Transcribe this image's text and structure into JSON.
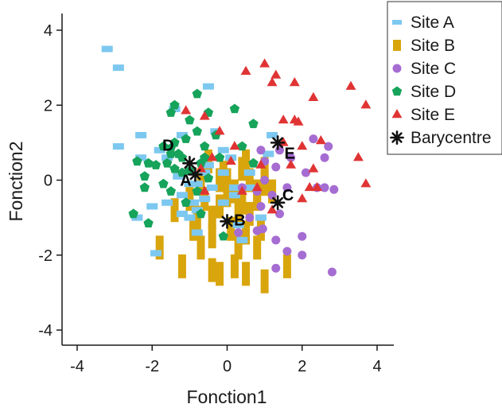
{
  "chart_data": {
    "type": "scatter",
    "xlabel": "Fonction1",
    "ylabel": "Fonction2",
    "xlim": [
      -4.4,
      4.4
    ],
    "ylim": [
      -4.4,
      4.4
    ],
    "xticks": [
      -4,
      -2,
      0,
      2,
      4
    ],
    "yticks": [
      -4,
      -2,
      0,
      2,
      4
    ],
    "xtick_labels": [
      "-4",
      "-2",
      "0",
      "2",
      "4"
    ],
    "ytick_labels": [
      "-4",
      "-2",
      "0",
      "2",
      "4"
    ],
    "grid": false,
    "legend_position": "top-right",
    "series": [
      {
        "name": "Site A",
        "marker": "hbar",
        "color": "#7DC8F0",
        "points": [
          [
            -3.2,
            3.5
          ],
          [
            -2.9,
            3.0
          ],
          [
            -0.5,
            2.5
          ],
          [
            -1.4,
            1.9
          ],
          [
            -2.3,
            1.2
          ],
          [
            -1.2,
            1.2
          ],
          [
            1.2,
            1.2
          ],
          [
            -2.9,
            0.9
          ],
          [
            -0.3,
            1.3
          ],
          [
            -0.1,
            0.8
          ],
          [
            -1.8,
            0.8
          ],
          [
            -2.3,
            0.6
          ],
          [
            -1.6,
            0.6
          ],
          [
            0.1,
            0.6
          ],
          [
            1.1,
            0.7
          ],
          [
            -0.5,
            0.4
          ],
          [
            -0.1,
            0.2
          ],
          [
            0.6,
            0.2
          ],
          [
            -0.6,
            0.2
          ],
          [
            -1.3,
            0.1
          ],
          [
            -0.8,
            -0.1
          ],
          [
            0.2,
            -0.2
          ],
          [
            -1.0,
            -0.1
          ],
          [
            -0.4,
            -0.2
          ],
          [
            -1.2,
            -0.4
          ],
          [
            -0.6,
            -0.5
          ],
          [
            0.6,
            -0.2
          ],
          [
            0.2,
            -0.4
          ],
          [
            -1.6,
            -0.6
          ],
          [
            -0.9,
            -0.6
          ],
          [
            -0.1,
            -0.6
          ],
          [
            -0.8,
            -0.8
          ],
          [
            -2.0,
            -0.7
          ],
          [
            -1.2,
            -0.9
          ],
          [
            -2.4,
            -1.0
          ],
          [
            -1.0,
            -1.0
          ],
          [
            0.3,
            -1.2
          ],
          [
            -0.8,
            -1.4
          ],
          [
            0.4,
            -1.6
          ],
          [
            0.9,
            -1.0
          ],
          [
            -1.9,
            -1.95
          ]
        ]
      },
      {
        "name": "Site B",
        "marker": "vbar",
        "color": "#D9A50D",
        "points": [
          [
            -1.8,
            -1.8
          ],
          [
            -1.2,
            -2.3
          ],
          [
            -0.7,
            -1.8
          ],
          [
            -0.4,
            -2.4
          ],
          [
            -0.2,
            -2.5
          ],
          [
            0.2,
            -2.3
          ],
          [
            0.5,
            -2.5
          ],
          [
            1.0,
            -2.7
          ],
          [
            1.6,
            -2.3
          ],
          [
            0.3,
            -1.8
          ],
          [
            0.8,
            -1.8
          ],
          [
            -1.4,
            -0.8
          ],
          [
            -0.8,
            -1.0
          ],
          [
            -0.6,
            -0.5
          ],
          [
            -0.4,
            -1.0
          ],
          [
            -0.2,
            -0.7
          ],
          [
            0.0,
            -0.4
          ],
          [
            0.2,
            -0.3
          ],
          [
            0.4,
            -0.6
          ],
          [
            0.6,
            -0.9
          ],
          [
            0.8,
            -0.3
          ],
          [
            1.0,
            -0.1
          ],
          [
            -0.2,
            0.0
          ],
          [
            0.0,
            0.0
          ],
          [
            0.4,
            0.3
          ],
          [
            0.6,
            0.0
          ],
          [
            0.8,
            -0.5
          ],
          [
            1.2,
            -0.3
          ],
          [
            -0.5,
            0.5
          ],
          [
            -0.1,
            0.2
          ],
          [
            0.5,
            0.5
          ],
          [
            1.0,
            0.3
          ],
          [
            -0.9,
            -1.3
          ],
          [
            -0.4,
            -1.5
          ],
          [
            0.1,
            -1.3
          ],
          [
            0.5,
            -1.4
          ],
          [
            0.9,
            -1.3
          ],
          [
            -0.7,
            0.0
          ],
          [
            -1.0,
            -0.5
          ],
          [
            0.3,
            -0.9
          ]
        ]
      },
      {
        "name": "Site C",
        "marker": "circle",
        "color": "#A56CD2",
        "points": [
          [
            0.9,
            0.8
          ],
          [
            1.4,
            0.8
          ],
          [
            2.3,
            1.1
          ],
          [
            2.7,
            0.9
          ],
          [
            1.7,
            0.6
          ],
          [
            2.6,
            0.6
          ],
          [
            1.3,
            0.35
          ],
          [
            2.1,
            0.2
          ],
          [
            1.0,
            0.0
          ],
          [
            1.6,
            -0.2
          ],
          [
            2.6,
            -0.2
          ],
          [
            2.85,
            -0.25
          ],
          [
            2.4,
            -0.2
          ],
          [
            0.4,
            -0.2
          ],
          [
            0.8,
            -0.3
          ],
          [
            1.2,
            -0.4
          ],
          [
            0.9,
            -0.7
          ],
          [
            1.4,
            -0.9
          ],
          [
            0.6,
            -1.0
          ],
          [
            0.3,
            -1.4
          ],
          [
            0.8,
            -1.35
          ],
          [
            0.95,
            -1.3
          ],
          [
            1.3,
            -1.6
          ],
          [
            2.0,
            -1.5
          ],
          [
            1.6,
            -1.9
          ],
          [
            2.0,
            -2.0
          ],
          [
            2.8,
            -2.45
          ],
          [
            1.3,
            -2.35
          ],
          [
            1.0,
            0.5
          ]
        ]
      },
      {
        "name": "Site D",
        "marker": "pentagon",
        "color": "#16A35A",
        "points": [
          [
            -1.4,
            2.0
          ],
          [
            -0.8,
            2.3
          ],
          [
            -1.5,
            1.8
          ],
          [
            -1.0,
            1.6
          ],
          [
            -0.5,
            1.8
          ],
          [
            0.2,
            1.9
          ],
          [
            0.7,
            1.5
          ],
          [
            -0.3,
            1.2
          ],
          [
            -0.8,
            1.3
          ],
          [
            -1.1,
            1.1
          ],
          [
            -1.4,
            1.0
          ],
          [
            -1.7,
            0.9
          ],
          [
            -0.6,
            0.9
          ],
          [
            0.4,
            0.9
          ],
          [
            -1.5,
            0.7
          ],
          [
            -1.2,
            0.6
          ],
          [
            -0.2,
            0.6
          ],
          [
            -2.4,
            0.5
          ],
          [
            -2.1,
            0.45
          ],
          [
            -1.9,
            0.4
          ],
          [
            -1.6,
            0.45
          ],
          [
            -0.7,
            0.45
          ],
          [
            0.7,
            0.45
          ],
          [
            -1.4,
            0.3
          ],
          [
            -1.2,
            0.2
          ],
          [
            -1.0,
            0.25
          ],
          [
            -2.2,
            0.1
          ],
          [
            -0.5,
            0.05
          ],
          [
            -1.7,
            -0.1
          ],
          [
            -2.2,
            -0.2
          ],
          [
            -1.5,
            -0.3
          ],
          [
            -0.8,
            -0.3
          ],
          [
            -1.1,
            -0.6
          ],
          [
            -2.5,
            -0.9
          ],
          [
            -2.1,
            -1.15
          ],
          [
            -0.7,
            -0.9
          ],
          [
            -0.1,
            -1.5
          ],
          [
            -1.5,
            0.85
          ],
          [
            -1.3,
            0.7
          ],
          [
            -0.6,
            0.6
          ]
        ]
      },
      {
        "name": "Site E",
        "marker": "triangle",
        "color": "#E03434",
        "points": [
          [
            1.0,
            3.1
          ],
          [
            0.5,
            2.9
          ],
          [
            1.3,
            2.8
          ],
          [
            1.2,
            2.6
          ],
          [
            1.8,
            2.6
          ],
          [
            3.3,
            2.5
          ],
          [
            2.3,
            2.2
          ],
          [
            3.7,
            2.0
          ],
          [
            -1.1,
            1.85
          ],
          [
            -0.6,
            1.7
          ],
          [
            1.8,
            1.6
          ],
          [
            1.9,
            1.55
          ],
          [
            -0.2,
            1.3
          ],
          [
            2.5,
            1.05
          ],
          [
            1.5,
            1.0
          ],
          [
            2.0,
            0.9
          ],
          [
            0.2,
            0.9
          ],
          [
            3.5,
            0.6
          ],
          [
            -0.4,
            0.6
          ],
          [
            2.3,
            0.3
          ],
          [
            1.7,
            0.4
          ],
          [
            0.9,
            0.4
          ],
          [
            -0.7,
            0.3
          ],
          [
            0.1,
            0.5
          ],
          [
            3.7,
            -0.1
          ],
          [
            2.2,
            -0.2
          ],
          [
            2.4,
            -0.2
          ],
          [
            2.0,
            -0.5
          ],
          [
            0.8,
            -0.2
          ],
          [
            0.4,
            -0.3
          ],
          [
            1.2,
            -0.8
          ],
          [
            -0.6,
            -0.3
          ],
          [
            1.5,
            1.6
          ]
        ]
      }
    ],
    "centroids": {
      "name": "Barycentre",
      "marker": "star",
      "color": "#111111",
      "points": [
        {
          "label": "A",
          "x": -0.85,
          "y": 0.15
        },
        {
          "label": "B",
          "x": 0.0,
          "y": -1.1
        },
        {
          "label": "C",
          "x": 1.35,
          "y": -0.6
        },
        {
          "label": "D",
          "x": -1.0,
          "y": 0.45
        },
        {
          "label": "E",
          "x": 1.35,
          "y": 1.0
        }
      ]
    }
  }
}
